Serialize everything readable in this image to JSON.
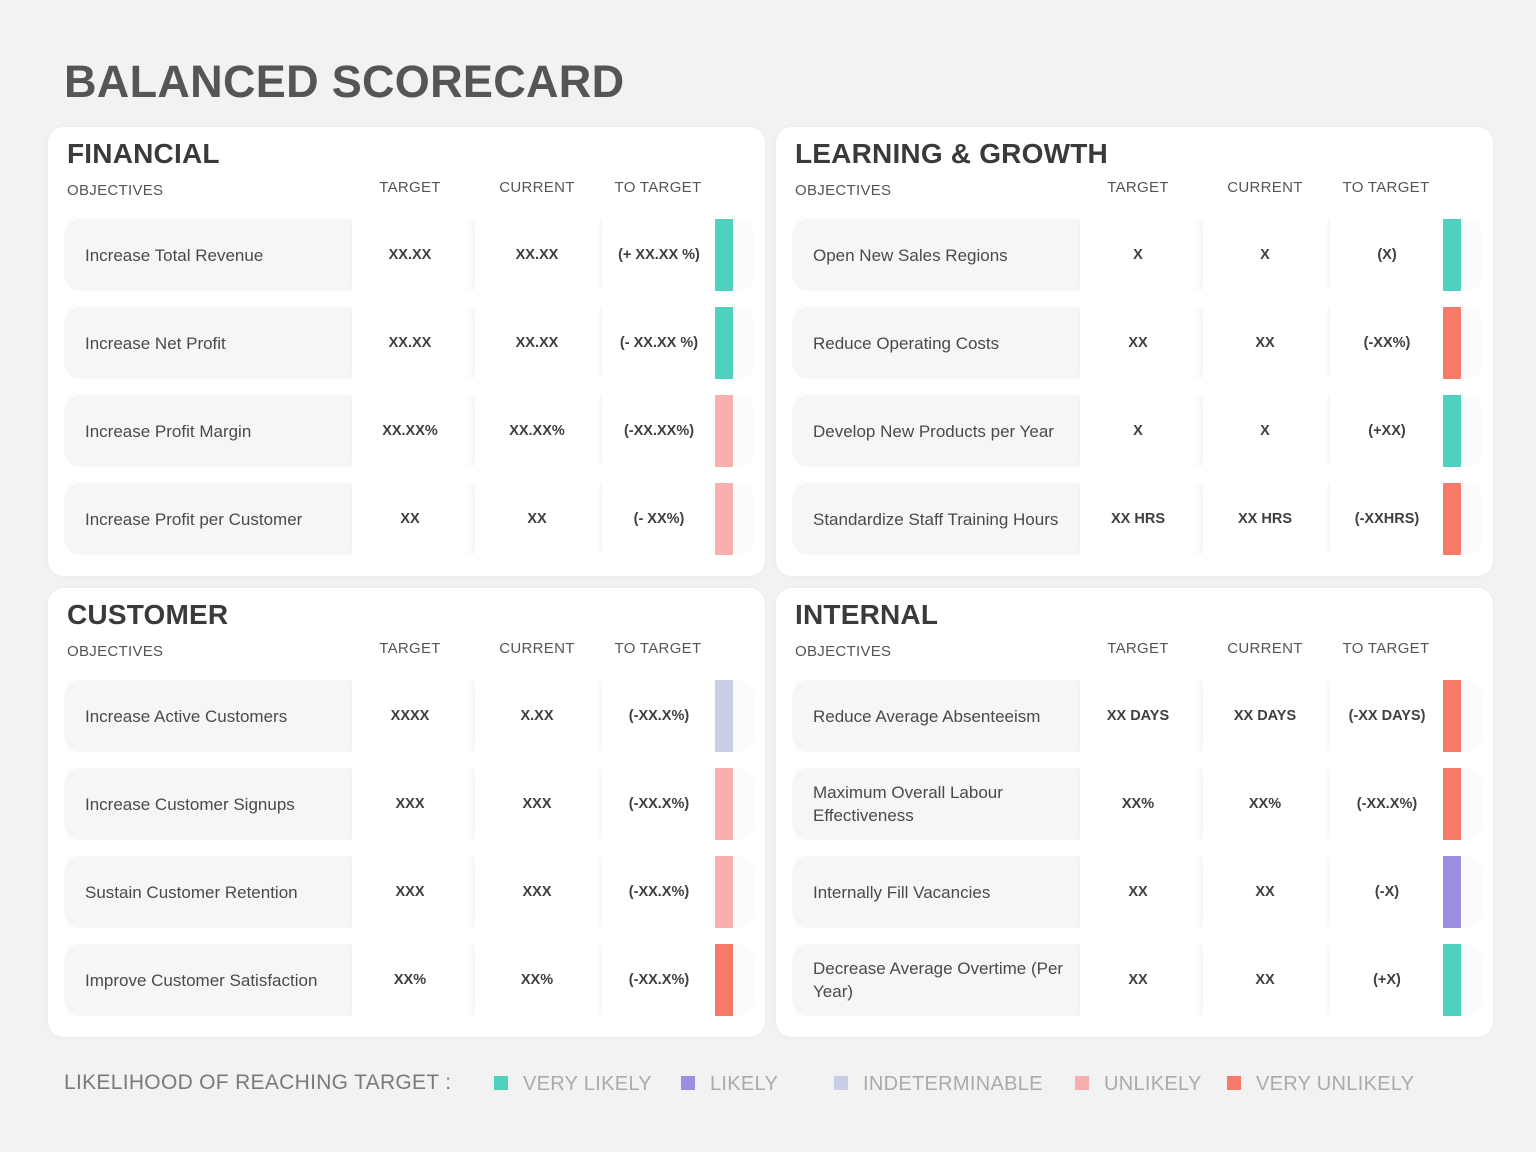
{
  "title": "BALANCED SCORECARD",
  "columns": {
    "objectives": "OBJECTIVES",
    "target": "TARGET",
    "current": "CURRENT",
    "to_target": "TO TARGET"
  },
  "status_colors": {
    "very_likely": "#4fd1c0",
    "likely": "#9b8de0",
    "indeterminable": "#c9cde6",
    "unlikely": "#f7b0b0",
    "very_unlikely": "#f77a68"
  },
  "quadrants": [
    {
      "title": "FINANCIAL",
      "rows": [
        {
          "objective": "Increase Total Revenue",
          "target": "XX.XX",
          "current": "XX.XX",
          "to_target": "(+ XX.XX %)",
          "status": "very_likely",
          "color": "#4fd1c0"
        },
        {
          "objective": "Increase Net Profit",
          "target": "XX.XX",
          "current": "XX.XX",
          "to_target": "(- XX.XX %)",
          "status": "very_likely",
          "color": "#4fd1c0"
        },
        {
          "objective": "Increase Profit Margin",
          "target": "XX.XX%",
          "current": "XX.XX%",
          "to_target": "(-XX.XX%)",
          "status": "unlikely",
          "color": "#f7b0b0"
        },
        {
          "objective": "Increase Profit per Customer",
          "target": "XX",
          "current": "XX",
          "to_target": "(- XX%)",
          "status": "unlikely",
          "color": "#f7b0b0"
        }
      ]
    },
    {
      "title": "LEARNING & GROWTH",
      "rows": [
        {
          "objective": "Open New Sales Regions",
          "target": "X",
          "current": "X",
          "to_target": "(X)",
          "status": "very_likely",
          "color": "#4fd1c0"
        },
        {
          "objective": "Reduce Operating Costs",
          "target": "XX",
          "current": "XX",
          "to_target": "(-XX%)",
          "status": "very_unlikely",
          "color": "#f77a68"
        },
        {
          "objective": "Develop New Products per Year",
          "target": "X",
          "current": "X",
          "to_target": "(+XX)",
          "status": "very_likely",
          "color": "#4fd1c0"
        },
        {
          "objective": "Standardize Staff Training Hours",
          "target": "XX HRS",
          "current": "XX HRS",
          "to_target": "(-XXHRS)",
          "status": "very_unlikely",
          "color": "#f77a68"
        }
      ]
    },
    {
      "title": "CUSTOMER",
      "rows": [
        {
          "objective": "Increase Active Customers",
          "target": "XXXX",
          "current": "X.XX",
          "to_target": "(-XX.X%)",
          "status": "indeterminable",
          "color": "#c9cde6"
        },
        {
          "objective": "Increase Customer Signups",
          "target": "XXX",
          "current": "XXX",
          "to_target": "(-XX.X%)",
          "status": "unlikely",
          "color": "#f7b0b0"
        },
        {
          "objective": "Sustain Customer Retention",
          "target": "XXX",
          "current": "XXX",
          "to_target": "(-XX.X%)",
          "status": "unlikely",
          "color": "#f7b0b0"
        },
        {
          "objective": "Improve Customer Satisfaction",
          "target": "XX%",
          "current": "XX%",
          "to_target": "(-XX.X%)",
          "status": "very_unlikely",
          "color": "#f77a68"
        }
      ]
    },
    {
      "title": "INTERNAL",
      "rows": [
        {
          "objective": "Reduce Average Absenteeism",
          "target": "XX DAYS",
          "current": "XX DAYS",
          "to_target": "(-XX DAYS)",
          "status": "very_unlikely",
          "color": "#f77a68"
        },
        {
          "objective": "Maximum Overall Labour Effectiveness",
          "target": "XX%",
          "current": "XX%",
          "to_target": "(-XX.X%)",
          "status": "very_unlikely",
          "color": "#f77a68"
        },
        {
          "objective": "Internally Fill Vacancies",
          "target": "XX",
          "current": "XX",
          "to_target": "(-X)",
          "status": "likely",
          "color": "#9b8de0"
        },
        {
          "objective": "Decrease Average Overtime (Per Year)",
          "target": "XX",
          "current": "XX",
          "to_target": "(+X)",
          "status": "very_likely",
          "color": "#4fd1c0"
        }
      ]
    }
  ],
  "legend": {
    "label": "LIKELIHOOD OF REACHING TARGET :",
    "items": [
      {
        "label": "VERY LIKELY",
        "color": "#4fd1c0"
      },
      {
        "label": "LIKELY",
        "color": "#9b8de0"
      },
      {
        "label": "INDETERMINABLE",
        "color": "#c9cde6"
      },
      {
        "label": "UNLIKELY",
        "color": "#f7b0b0"
      },
      {
        "label": "VERY UNLIKELY",
        "color": "#f77a68"
      }
    ]
  }
}
